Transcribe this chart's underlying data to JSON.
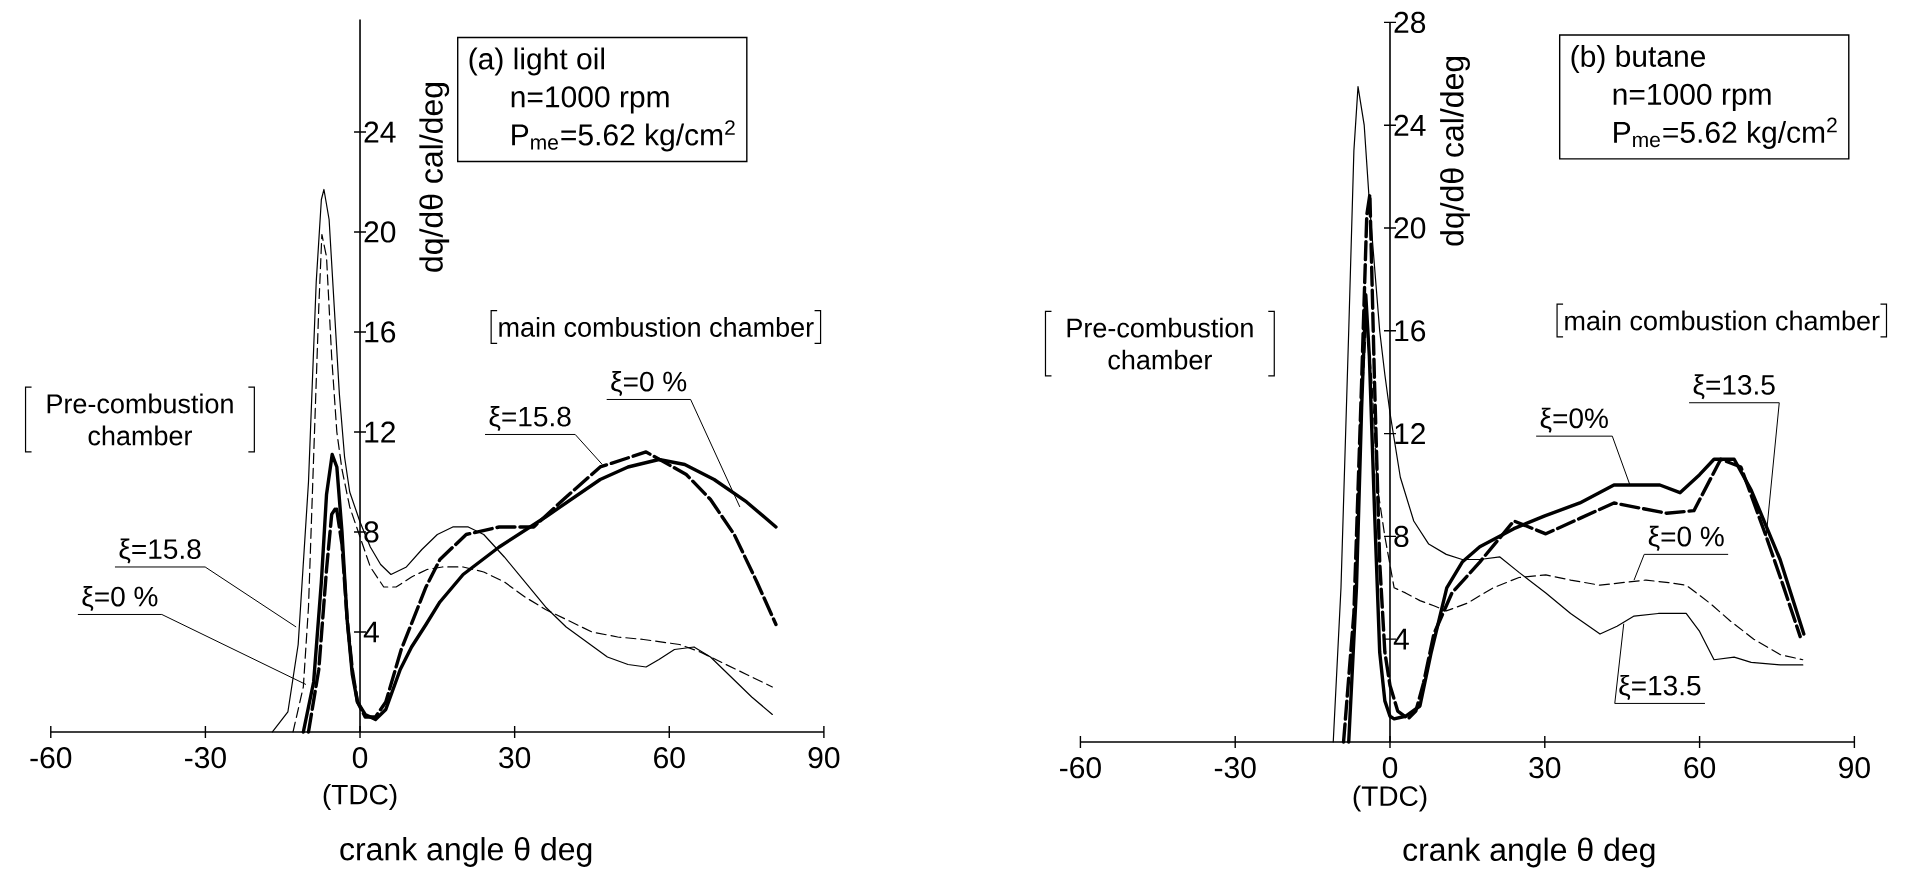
{
  "chart_data": [
    {
      "type": "line",
      "title": "(a) light oil",
      "xlabel": "crank angle   θ   deg",
      "ylabel": "dq/dθ   cal/deg",
      "xlim": [
        -60,
        90
      ],
      "xticks": [
        -60,
        -30,
        0,
        30,
        60,
        90
      ],
      "ylim": [
        0,
        28.5
      ],
      "yticks": [
        4,
        8,
        12,
        16,
        20,
        24
      ],
      "series": [
        {
          "color": "#000000",
          "line_style": "solid",
          "x": [
            -17,
            -14,
            -12,
            -10,
            -8.5,
            -7.5,
            -7,
            -6,
            -5,
            -4,
            -3,
            -2,
            0,
            2,
            4,
            6,
            9,
            12,
            15,
            18,
            21,
            24,
            28,
            32,
            36,
            40,
            44,
            48,
            52,
            55.5,
            58,
            61,
            64.8,
            68,
            72,
            76,
            80
          ],
          "values": [
            0,
            0.8,
            3.5,
            10,
            18,
            21.3,
            21.7,
            20.5,
            17,
            13.5,
            11,
            9.6,
            8.4,
            7.4,
            6.7,
            6.3,
            6.6,
            7.3,
            7.9,
            8.2,
            8.2,
            7.9,
            7.0,
            6.0,
            5.0,
            4.2,
            3.6,
            3.0,
            2.7,
            2.6,
            2.9,
            3.3,
            3.4,
            3.0,
            2.2,
            1.4,
            0.7
          ]
        },
        {
          "color": "#000000",
          "line_style": "dashed",
          "x": [
            -13,
            -11,
            -10,
            -9,
            -8,
            -7.4,
            -6.5,
            -5.5,
            -4.5,
            -3.5,
            -2,
            0,
            2,
            4.6,
            7,
            10,
            13,
            16,
            20,
            24,
            28,
            32,
            36,
            40,
            45,
            50,
            55,
            62,
            66,
            70,
            75,
            80
          ],
          "values": [
            0,
            1.8,
            5,
            11,
            17,
            19.9,
            19,
            15,
            12,
            10.5,
            9.0,
            7.8,
            6.6,
            5.8,
            5.8,
            6.2,
            6.5,
            6.6,
            6.6,
            6.4,
            6.0,
            5.4,
            4.9,
            4.5,
            4.0,
            3.8,
            3.7,
            3.5,
            3.2,
            2.8,
            2.3,
            1.8
          ]
        },
        {
          "color": "#000000",
          "line_style": "solid",
          "x": [
            -11,
            -9,
            -7.5,
            -6.5,
            -5.4,
            -4.5,
            -3.5,
            -2.5,
            -1.5,
            -0.5,
            1,
            3,
            5,
            7.8,
            10,
            12.8,
            15.5,
            20,
            27,
            36,
            46.6,
            52,
            58,
            63,
            68.7,
            75,
            80.7
          ],
          "values": [
            0,
            2,
            6,
            9.5,
            11.1,
            10.6,
            8,
            4.5,
            2.3,
            1.2,
            0.7,
            0.5,
            0.9,
            2.5,
            3.4,
            4.3,
            5.2,
            6.3,
            7.4,
            8.6,
            10.1,
            10.6,
            10.9,
            10.7,
            10.1,
            9.2,
            8.2
          ]
        },
        {
          "color": "#000000",
          "line_style": "dashed",
          "x": [
            -10,
            -8,
            -6.5,
            -5.5,
            -4.6,
            -3.5,
            -2.5,
            -1.5,
            -0.5,
            1,
            3,
            5,
            8,
            12.8,
            15.5,
            20.6,
            27,
            33.7,
            40,
            46.6,
            55.5,
            63.3,
            68,
            72.6,
            77,
            80.7
          ],
          "values": [
            0,
            2.5,
            6.5,
            8.7,
            9.0,
            7.5,
            4.5,
            2.5,
            1.2,
            0.6,
            0.6,
            1.2,
            3.3,
            5.8,
            6.9,
            7.9,
            8.2,
            8.2,
            9.4,
            10.6,
            11.2,
            10.3,
            9.3,
            7.9,
            6.0,
            4.3
          ]
        }
      ],
      "annotations": [
        "n=1000 rpm",
        "P$_{me}$=5.62 kg/cm$^{2}$",
        "(TDC)",
        "Pre-combustion chamber",
        "main combustion chamber",
        {
          "text": "ξ=15.8",
          "x": -12.4,
          "y": 4.2
        },
        {
          "text": "ξ=0 %",
          "x": -10.5,
          "y": 1.9
        },
        {
          "text": "ξ=15.8",
          "x": 47,
          "y": 10.7
        },
        {
          "text": "ξ=0 %",
          "x": 73.7,
          "y": 9.0
        }
      ]
    },
    {
      "type": "line",
      "title": "(b) butane",
      "xlabel": "crank angle   θ   deg",
      "ylabel": "dq/dθ   cal/deg",
      "xlim": [
        -60,
        90
      ],
      "xticks": [
        -60,
        -30,
        0,
        30,
        60,
        90
      ],
      "ylim": [
        0,
        28
      ],
      "yticks": [
        4,
        8,
        12,
        16,
        20,
        24,
        28
      ],
      "series": [
        {
          "color": "#000000",
          "line_style": "solid",
          "x": [
            -11,
            -9.5,
            -8,
            -7,
            -6.2,
            -5,
            -4,
            -3,
            -2,
            -1,
            0,
            2,
            4.6,
            7.5,
            10.9,
            14,
            17.4,
            21.3,
            25,
            30.2,
            35,
            40.7,
            44,
            47.3,
            52,
            57.4,
            60,
            62.8,
            66.7,
            70,
            75.6,
            80
          ],
          "values": [
            0,
            6,
            16,
            23,
            25.5,
            24,
            21,
            18.5,
            16,
            14.3,
            12.8,
            10.3,
            8.6,
            7.7,
            7.3,
            7.1,
            7.1,
            7.2,
            6.6,
            5.8,
            5.0,
            4.2,
            4.5,
            4.9,
            5.0,
            5.0,
            4.3,
            3.2,
            3.3,
            3.1,
            3.0,
            3.0
          ]
        },
        {
          "color": "#000000",
          "line_style": "dashed",
          "x": [
            -8,
            -6.5,
            -5.5,
            -4.5,
            -3.5,
            -2.5,
            -1,
            0.8,
            3,
            5.8,
            8.5,
            10.9,
            15,
            20,
            25,
            30.2,
            35,
            40.7,
            45,
            49.6,
            54,
            57.4,
            62,
            66,
            70.5,
            75.6,
            80
          ],
          "values": [
            0,
            6,
            13,
            16.5,
            14,
            10,
            8,
            6.0,
            5.8,
            5.5,
            5.3,
            5.1,
            5.4,
            6.0,
            6.4,
            6.5,
            6.3,
            6.1,
            6.2,
            6.3,
            6.2,
            6.1,
            5.4,
            4.7,
            4.0,
            3.4,
            3.2
          ]
        },
        {
          "color": "#000000",
          "line_style": "solid",
          "x": [
            -8,
            -6.5,
            -5.5,
            -4.7,
            -4,
            -3,
            -2,
            -1,
            0,
            0.8,
            3,
            5.8,
            8,
            11,
            14,
            17.4,
            24,
            30,
            36.8,
            43.4,
            52.3,
            56.2,
            60,
            62.8,
            66.7,
            70,
            75.6,
            80.2
          ],
          "values": [
            0,
            6,
            13,
            17.4,
            15,
            9,
            3.5,
            1.6,
            1.0,
            0.9,
            1.0,
            1.4,
            3.5,
            6.0,
            7.0,
            7.6,
            8.3,
            8.8,
            9.3,
            10.0,
            10.0,
            9.7,
            10.4,
            11.0,
            11.0,
            9.8,
            7.1,
            4.2
          ]
        },
        {
          "color": "#000000",
          "line_style": "dashed",
          "x": [
            -9,
            -7,
            -5.5,
            -4.5,
            -3.9,
            -3,
            -2,
            -1,
            0,
            1.5,
            3.5,
            5,
            6.5,
            8.5,
            12,
            17.4,
            24,
            30.2,
            36.8,
            43.4,
            53.6,
            58.9,
            64.1,
            68,
            72.9,
            76,
            79.5
          ],
          "values": [
            0,
            5,
            14,
            20.5,
            21.3,
            14,
            7,
            3.5,
            2.2,
            1.2,
            0.9,
            1.2,
            2.3,
            4.2,
            5.8,
            7.0,
            8.6,
            8.1,
            8.7,
            9.3,
            8.9,
            9.0,
            11.0,
            10.7,
            8.0,
            6.2,
            4.1
          ]
        }
      ],
      "annotations": [
        "n=1000 rpm",
        "P$_{me}$=5.62 kg/cm$^{2}$",
        "(TDC)",
        "Pre-combustion chamber",
        "main combustion chamber",
        {
          "text": "ξ=13.5",
          "x": 72.9,
          "y": 8.0
        },
        {
          "text": "ξ=0%",
          "x": 46.5,
          "y": 10.0
        },
        {
          "text": "ξ=0 %",
          "x": 47.3,
          "y": 6.3
        },
        {
          "text": "ξ=13.5",
          "x": 45.3,
          "y": 4.6
        }
      ]
    }
  ]
}
